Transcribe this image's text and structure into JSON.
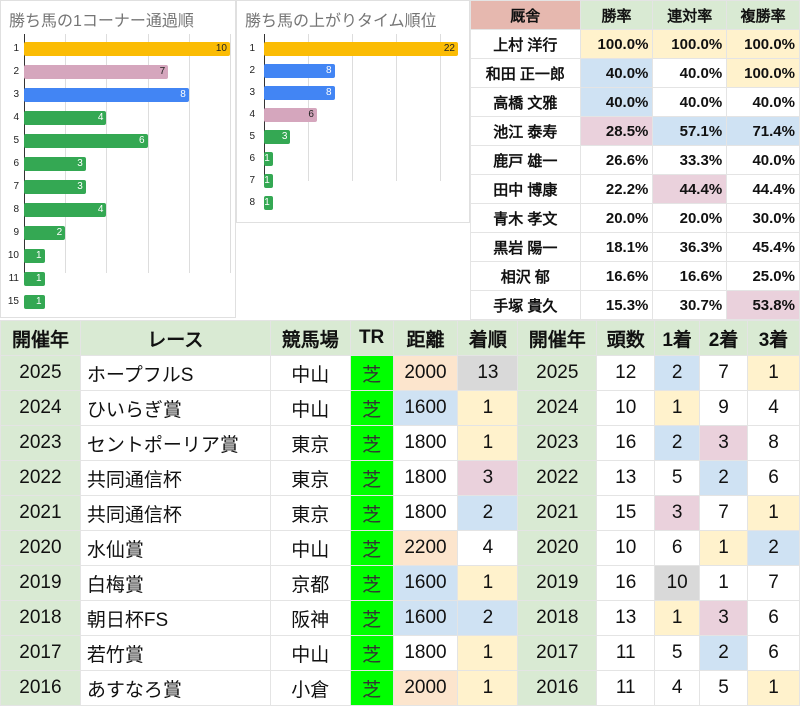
{
  "colors": {
    "gold": "#fbbc04",
    "pink": "#d5a6bd",
    "blue": "#4285f4",
    "green": "#34a853"
  },
  "chart_data": [
    {
      "type": "bar",
      "title": "勝ち馬の1コーナー通過順",
      "categories": [
        "1",
        "2",
        "3",
        "4",
        "5",
        "6",
        "7",
        "8",
        "9",
        "10",
        "11",
        "15"
      ],
      "values": [
        10,
        7,
        8,
        4,
        6,
        3,
        3,
        4,
        2,
        1,
        1,
        1
      ],
      "colors": [
        "gold",
        "pink",
        "blue",
        "green",
        "green",
        "green",
        "green",
        "green",
        "green",
        "green",
        "green",
        "green"
      ],
      "xlim": [
        0,
        10
      ],
      "grid_step": 2
    },
    {
      "type": "bar",
      "title": "勝ち馬の上がりタイム順位",
      "categories": [
        "1",
        "2",
        "3",
        "4",
        "5",
        "6",
        "7",
        "8"
      ],
      "values": [
        22,
        8,
        8,
        6,
        3,
        1,
        1,
        1
      ],
      "colors": [
        "gold",
        "blue",
        "blue",
        "pink",
        "green",
        "green",
        "green",
        "green"
      ],
      "xlim": [
        0,
        22
      ],
      "grid_step": 5
    }
  ],
  "stable": {
    "headers": [
      "厩舎",
      "勝率",
      "連対率",
      "複勝率"
    ],
    "rows": [
      [
        "上村 洋行",
        "100.0%",
        "100.0%",
        "100.0%",
        "y",
        "y",
        "y"
      ],
      [
        "和田 正一郎",
        "40.0%",
        "40.0%",
        "100.0%",
        "b",
        "w",
        "y"
      ],
      [
        "高橋 文雅",
        "40.0%",
        "40.0%",
        "40.0%",
        "b",
        "w",
        "w"
      ],
      [
        "池江 泰寿",
        "28.5%",
        "57.1%",
        "71.4%",
        "p",
        "b",
        "b"
      ],
      [
        "鹿戸 雄一",
        "26.6%",
        "33.3%",
        "40.0%",
        "w",
        "w",
        "w"
      ],
      [
        "田中 博康",
        "22.2%",
        "44.4%",
        "44.4%",
        "w",
        "p",
        "w"
      ],
      [
        "青木 孝文",
        "20.0%",
        "20.0%",
        "30.0%",
        "w",
        "w",
        "w"
      ],
      [
        "黒岩 陽一",
        "18.1%",
        "36.3%",
        "45.4%",
        "w",
        "w",
        "w"
      ],
      [
        "相沢 郁",
        "16.6%",
        "16.6%",
        "25.0%",
        "w",
        "w",
        "w"
      ],
      [
        "手塚 貴久",
        "15.3%",
        "30.7%",
        "53.8%",
        "w",
        "w",
        "p"
      ]
    ]
  },
  "races": {
    "headers": [
      "開催年",
      "レース",
      "競馬場",
      "TR",
      "距離",
      "着順",
      "開催年",
      "頭数",
      "1着",
      "2着",
      "3着"
    ],
    "rows": [
      {
        "cells": [
          "2025",
          "ホープフルS",
          "中山",
          "芝",
          "2000",
          "13",
          "2025",
          "12",
          "2",
          "7",
          "1"
        ],
        "hl": [
          "gr",
          "w",
          "w",
          "tr",
          "o",
          "g",
          "gr",
          "w",
          "b",
          "w",
          "y"
        ]
      },
      {
        "cells": [
          "2024",
          "ひいらぎ賞",
          "中山",
          "芝",
          "1600",
          "1",
          "2024",
          "10",
          "1",
          "9",
          "4"
        ],
        "hl": [
          "gr",
          "w",
          "w",
          "tr",
          "b",
          "y",
          "gr",
          "w",
          "y",
          "w",
          "w"
        ]
      },
      {
        "cells": [
          "2023",
          "セントポーリア賞",
          "東京",
          "芝",
          "1800",
          "1",
          "2023",
          "16",
          "2",
          "3",
          "8"
        ],
        "hl": [
          "gr",
          "w",
          "w",
          "tr",
          "w",
          "y",
          "gr",
          "w",
          "b",
          "p",
          "w"
        ]
      },
      {
        "cells": [
          "2022",
          "共同通信杯",
          "東京",
          "芝",
          "1800",
          "3",
          "2022",
          "13",
          "5",
          "2",
          "6"
        ],
        "hl": [
          "gr",
          "w",
          "w",
          "tr",
          "w",
          "p",
          "gr",
          "w",
          "w",
          "b",
          "w"
        ]
      },
      {
        "cells": [
          "2021",
          "共同通信杯",
          "東京",
          "芝",
          "1800",
          "2",
          "2021",
          "15",
          "3",
          "7",
          "1"
        ],
        "hl": [
          "gr",
          "w",
          "w",
          "tr",
          "w",
          "b",
          "gr",
          "w",
          "p",
          "w",
          "y"
        ]
      },
      {
        "cells": [
          "2020",
          "水仙賞",
          "中山",
          "芝",
          "2200",
          "4",
          "2020",
          "10",
          "6",
          "1",
          "2"
        ],
        "hl": [
          "gr",
          "w",
          "w",
          "tr",
          "o",
          "w",
          "gr",
          "w",
          "w",
          "y",
          "b"
        ]
      },
      {
        "cells": [
          "2019",
          "白梅賞",
          "京都",
          "芝",
          "1600",
          "1",
          "2019",
          "16",
          "10",
          "1",
          "7"
        ],
        "hl": [
          "gr",
          "w",
          "w",
          "tr",
          "b",
          "y",
          "gr",
          "w",
          "g",
          "w",
          "w"
        ]
      },
      {
        "cells": [
          "2018",
          "朝日杯FS",
          "阪神",
          "芝",
          "1600",
          "2",
          "2018",
          "13",
          "1",
          "3",
          "6"
        ],
        "hl": [
          "gr",
          "w",
          "w",
          "tr",
          "b",
          "b",
          "gr",
          "w",
          "y",
          "p",
          "w"
        ]
      },
      {
        "cells": [
          "2017",
          "若竹賞",
          "中山",
          "芝",
          "1800",
          "1",
          "2017",
          "11",
          "5",
          "2",
          "6"
        ],
        "hl": [
          "gr",
          "w",
          "w",
          "tr",
          "w",
          "y",
          "gr",
          "w",
          "w",
          "b",
          "w"
        ]
      },
      {
        "cells": [
          "2016",
          "あすなろ賞",
          "小倉",
          "芝",
          "2000",
          "1",
          "2016",
          "11",
          "4",
          "5",
          "1"
        ],
        "hl": [
          "gr",
          "w",
          "w",
          "tr",
          "o",
          "y",
          "gr",
          "w",
          "w",
          "w",
          "y"
        ]
      }
    ]
  }
}
